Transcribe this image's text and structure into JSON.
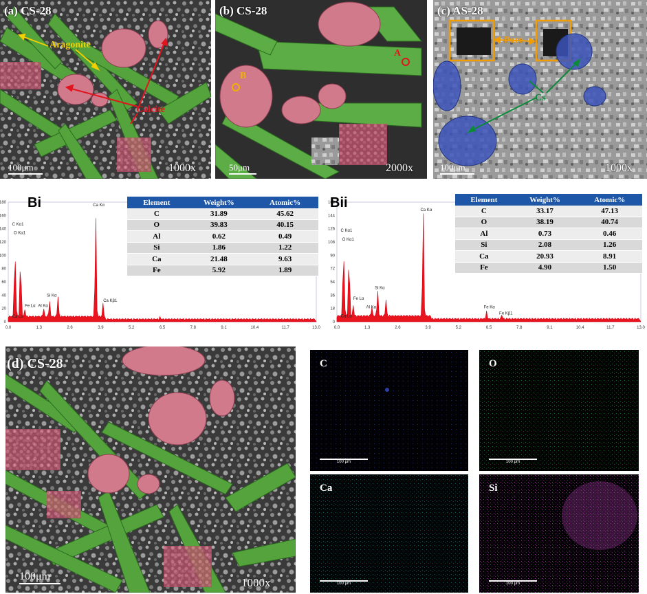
{
  "panel_a": {
    "label": "(a) CS-28",
    "aragonite": "Aragonite",
    "calcite": "Calcite",
    "scale": "100μm",
    "mag": "1000x"
  },
  "panel_b": {
    "label": "(b) CS-28",
    "point_a": "A",
    "point_b": "B",
    "scale": "50μm",
    "mag": "2000x"
  },
  "panel_c": {
    "label": "(c) AS-28",
    "pore": "Pore",
    "cs": "Cs",
    "scale": "100μm",
    "mag": "1000x"
  },
  "panel_d": {
    "label": "(d) CS-28",
    "scale": "100μm",
    "mag": "1000x"
  },
  "bi": {
    "tag": "Bi",
    "headers": [
      "Element",
      "Weight%",
      "Atomic%"
    ],
    "rows": [
      [
        "C",
        "31.89",
        "45.62"
      ],
      [
        "O",
        "39.83",
        "40.15"
      ],
      [
        "Al",
        "0.62",
        "0.49"
      ],
      [
        "Si",
        "1.86",
        "1.22"
      ],
      [
        "Ca",
        "21.48",
        "9.63"
      ],
      [
        "Fe",
        "5.92",
        "1.89"
      ]
    ],
    "yticks": [
      "180",
      "160",
      "140",
      "120",
      "100",
      "80",
      "60",
      "40",
      "20",
      "0"
    ],
    "xticks": [
      "0.0",
      "1.3",
      "2.6",
      "3.9",
      "5.2",
      "6.5",
      "7.8",
      "9.1",
      "10.4",
      "11.7",
      "13.0"
    ],
    "peaks": [
      "C Kα1",
      "O Kα1",
      "Fe Lα",
      "Ca Lα",
      "Al Kα",
      "Si Kα",
      "Ca Kα",
      "Ca Kβ1"
    ]
  },
  "bii": {
    "tag": "Bii",
    "headers": [
      "Element",
      "Weight%",
      "Atomic%"
    ],
    "rows": [
      [
        "C",
        "33.17",
        "47.13"
      ],
      [
        "O",
        "38.19",
        "40.74"
      ],
      [
        "Al",
        "0.73",
        "0.46"
      ],
      [
        "Si",
        "2.08",
        "1.26"
      ],
      [
        "Ca",
        "20.93",
        "8.91"
      ],
      [
        "Fe",
        "4.90",
        "1.50"
      ]
    ],
    "yticks": [
      "162",
      "144",
      "126",
      "108",
      "90",
      "72",
      "54",
      "36",
      "18",
      "0"
    ],
    "xticks": [
      "0.0",
      "1.3",
      "2.6",
      "3.9",
      "5.2",
      "6.5",
      "7.8",
      "9.1",
      "10.4",
      "11.7",
      "13.0"
    ],
    "peaks": [
      "C Kα1",
      "O Kα1",
      "Fe Lα",
      "Ca Lα",
      "Al Kα",
      "Si Kα",
      "Ca Kα",
      "Fe Kα",
      "Fe Kβ1"
    ]
  },
  "maps": {
    "c": "C",
    "o": "O",
    "ca": "Ca",
    "si": "Si",
    "scale": "100 μm"
  }
}
